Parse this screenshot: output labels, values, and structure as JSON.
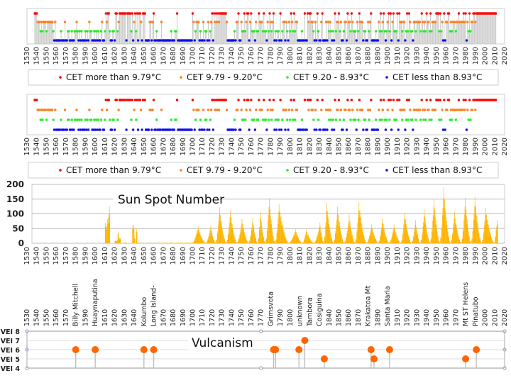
{
  "colors": {
    "red": "#ff0000",
    "orange": "#ff7f1e",
    "green": "#22ee22",
    "blue": "#1010ee",
    "sun": "#ffb400",
    "volcano": "#ff6600",
    "stem": "#c8c8c8",
    "grid": "#bbbbbb"
  },
  "chart_data": [
    {
      "type": "scatter",
      "title": "",
      "variant": "with-stems",
      "xlim": [
        1530,
        2020
      ],
      "xticks_step": 10,
      "legend": [
        "CET more than 9.79°C",
        "CET 9.79 - 9.20°C",
        "CET 9.20 - 8.93°C",
        "CET less than 8.93°C"
      ],
      "legend_placement": "bottom",
      "start_year": 1538,
      "class_codes": "1 = more than 9.79, 2 = 9.79-9.20, 3 = 9.20-8.93, 4 = less than 8.93",
      "classes": "111222323222322222234244444344424433443443323434344434342334434343443244312113443341132111111141111314213141124111444422421443444424444444443444331444444444444444124322243442433424321412121211111112444444434221442331321142133342331222313342312321434334143224234231231322444434414412112234241344214442423234341322132443224122312333423122243344232144443442313213432131421333141223224313123342232222312323122313222211131324142211323222322122221214231322112111111111111111111111",
      "note": "classes: one digit per year from start_year"
    },
    {
      "type": "scatter",
      "variant": "dots-only",
      "xlim": [
        1530,
        2020
      ],
      "legend": [
        "CET more than 9.79°C",
        "CET 9.79 - 9.20°C",
        "CET 9.20 - 8.93°C",
        "CET less than 8.93°C"
      ],
      "legend_placement": "bottom",
      "same_data_as": "chart 1"
    },
    {
      "type": "bar",
      "title": "Sun Spot Number",
      "xlim": [
        1530,
        2020
      ],
      "ylim": [
        0,
        200
      ],
      "yticks": [
        "0",
        "50",
        "100",
        "150",
        "200"
      ],
      "grid": true,
      "early_values": [
        [
          1610,
          70
        ],
        [
          1611,
          55
        ],
        [
          1612,
          82
        ],
        [
          1613,
          88
        ],
        [
          1614,
          125
        ],
        [
          1620,
          10
        ],
        [
          1621,
          8
        ],
        [
          1622,
          10
        ],
        [
          1623,
          40
        ],
        [
          1624,
          20
        ],
        [
          1625,
          18
        ],
        [
          1630,
          3
        ],
        [
          1631,
          3
        ],
        [
          1638,
          60
        ],
        [
          1639,
          63
        ],
        [
          1640,
          18
        ],
        [
          1642,
          48
        ],
        [
          1643,
          3
        ]
      ],
      "maunder_start": 1645,
      "maunder_end": 1698,
      "cycle_peaks": [
        [
          1705,
          58
        ],
        [
          1718,
          62
        ],
        [
          1727,
          122
        ],
        [
          1738,
          111
        ],
        [
          1750,
          83
        ],
        [
          1761,
          86
        ],
        [
          1769,
          106
        ],
        [
          1778,
          154
        ],
        [
          1788,
          132
        ],
        [
          1805,
          48
        ],
        [
          1816,
          46
        ],
        [
          1830,
          71
        ],
        [
          1837,
          138
        ],
        [
          1848,
          124
        ],
        [
          1860,
          96
        ],
        [
          1870,
          139
        ],
        [
          1883,
          64
        ],
        [
          1894,
          84
        ],
        [
          1906,
          64
        ],
        [
          1917,
          104
        ],
        [
          1928,
          78
        ],
        [
          1937,
          114
        ],
        [
          1947,
          152
        ],
        [
          1957,
          190
        ],
        [
          1968,
          106
        ],
        [
          1979,
          155
        ],
        [
          1989,
          158
        ],
        [
          2000,
          120
        ]
      ],
      "end_values": [
        [
          2009,
          3
        ],
        [
          2010,
          25
        ],
        [
          2011,
          56
        ],
        [
          2012,
          80
        ]
      ]
    },
    {
      "type": "scatter",
      "title": "Vulcanism",
      "xlim": [
        1530,
        2020
      ],
      "yticks": [
        "VEI 4",
        "VEI 5",
        "VEI 6",
        "VEI 7",
        "VEI 8"
      ],
      "ylim": [
        4,
        8
      ],
      "xtick_labels": [
        [
          1530,
          "1530"
        ],
        [
          1540,
          "1540"
        ],
        [
          1550,
          "1550"
        ],
        [
          1560,
          "1560"
        ],
        [
          1570,
          "1570"
        ],
        [
          1580,
          "Billy Mitchell"
        ],
        [
          1590,
          "1590"
        ],
        [
          1600,
          "Huaynaputina"
        ],
        [
          1610,
          "1610"
        ],
        [
          1620,
          "1620"
        ],
        [
          1630,
          "1630"
        ],
        [
          1640,
          "1640"
        ],
        [
          1650,
          "Kolumbo"
        ],
        [
          1660,
          "Long Island-"
        ],
        [
          1670,
          "1670"
        ],
        [
          1680,
          "1680"
        ],
        [
          1690,
          "1690"
        ],
        [
          1700,
          "1700"
        ],
        [
          1710,
          "1710"
        ],
        [
          1720,
          "1720"
        ],
        [
          1730,
          "1730"
        ],
        [
          1740,
          "1740"
        ],
        [
          1750,
          "1750"
        ],
        [
          1760,
          "1760"
        ],
        [
          1770,
          "1770"
        ],
        [
          1780,
          "Grimsvota"
        ],
        [
          1790,
          "1790"
        ],
        [
          1800,
          "1800"
        ],
        [
          1810,
          "unknown"
        ],
        [
          1820,
          "Tambora"
        ],
        [
          1830,
          "Cosiguina"
        ],
        [
          1840,
          "1840"
        ],
        [
          1850,
          "1850"
        ],
        [
          1860,
          "1860"
        ],
        [
          1870,
          "1870"
        ],
        [
          1880,
          "Krakatoa  Mt"
        ],
        [
          1890,
          "1890"
        ],
        [
          1900,
          "Santa Maria"
        ],
        [
          1910,
          "1910"
        ],
        [
          1920,
          "1920"
        ],
        [
          1930,
          "1930"
        ],
        [
          1940,
          "1940"
        ],
        [
          1950,
          "1950"
        ],
        [
          1960,
          "1960"
        ],
        [
          1970,
          "1970"
        ],
        [
          1980,
          "Mt ST Helens"
        ],
        [
          1990,
          "Pinatubo"
        ],
        [
          2000,
          "2000"
        ],
        [
          2010,
          "2010"
        ],
        [
          2020,
          "2020"
        ]
      ],
      "events": [
        {
          "year": 1580,
          "vei": 6
        },
        {
          "year": 1600,
          "vei": 6
        },
        {
          "year": 1650,
          "vei": 6
        },
        {
          "year": 1660,
          "vei": 6
        },
        {
          "year": 1783,
          "vei": 6
        },
        {
          "year": 1785,
          "vei": 6
        },
        {
          "year": 1809,
          "vei": 6
        },
        {
          "year": 1815,
          "vei": 7
        },
        {
          "year": 1835,
          "vei": 5
        },
        {
          "year": 1883,
          "vei": 6
        },
        {
          "year": 1886,
          "vei": 5
        },
        {
          "year": 1902,
          "vei": 6
        },
        {
          "year": 1980,
          "vei": 5
        },
        {
          "year": 1991,
          "vei": 6
        }
      ]
    }
  ]
}
